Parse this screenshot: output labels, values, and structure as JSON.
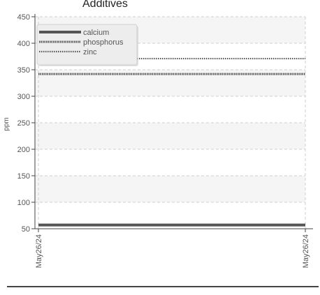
{
  "chart_data": {
    "type": "line",
    "title": "Additives",
    "ylabel": "ppm",
    "xlabel": "",
    "x": [
      "May26/24",
      "May26/24"
    ],
    "ylim": [
      50,
      450
    ],
    "yticks": [
      "450",
      "400",
      "350",
      "300",
      "250",
      "200",
      "150",
      "100",
      "50"
    ],
    "grid": true,
    "legend_position": "top-left",
    "series": [
      {
        "name": "calcium",
        "values": [
          57,
          57
        ],
        "color": "#555555",
        "style": "solid"
      },
      {
        "name": "phosphorus",
        "values": [
          342,
          342
        ],
        "color": "#555555",
        "style": "dense-dotted"
      },
      {
        "name": "zinc",
        "values": [
          371,
          371
        ],
        "color": "#555555",
        "style": "dotted"
      }
    ]
  }
}
